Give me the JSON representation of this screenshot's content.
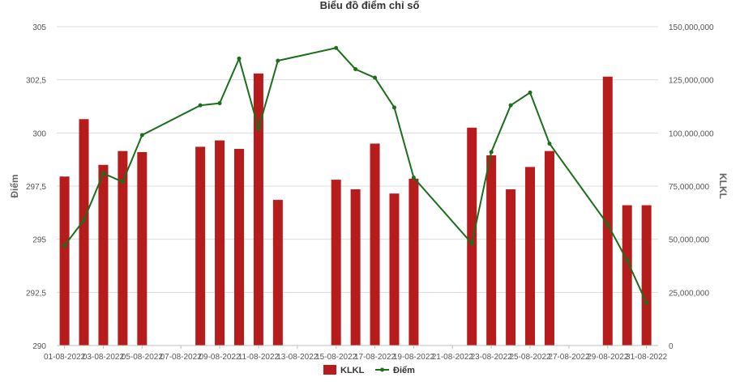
{
  "chart_data": {
    "type": "bar+line",
    "title": "Biểu đồ điểm chỉ số",
    "y_left_label": "Điểm",
    "y_right_label": "KLKL",
    "y_left_ticks": [
      "290",
      "292,5",
      "295",
      "297,5",
      "300",
      "302,5",
      "305"
    ],
    "y_right_ticks": [
      "0",
      "25,000,000",
      "50,000,000",
      "75,000,000",
      "100,000,000",
      "125,000,000",
      "150,000,000"
    ],
    "y_left_range": [
      290,
      305
    ],
    "y_right_range": [
      0,
      150000000
    ],
    "x_tick_labels": [
      "01-08-2022",
      "03-08-2022",
      "05-08-2022",
      "07-08-2022",
      "09-08-2022",
      "11-08-2022",
      "13-08-2022",
      "15-08-2022",
      "17-08-2022",
      "19-08-2022",
      "21-08-2022",
      "23-08-2022",
      "25-08-2022",
      "27-08-2022",
      "29-08-2022",
      "31-08-2022"
    ],
    "grid": true,
    "legend_position": "bottom",
    "series": [
      {
        "name": "KLKL",
        "type": "bar",
        "axis": "right",
        "color": "#b71c1c",
        "points": [
          {
            "date": "01-08-2022",
            "value": 79500000
          },
          {
            "date": "02-08-2022",
            "value": 106500000
          },
          {
            "date": "03-08-2022",
            "value": 85000000
          },
          {
            "date": "04-08-2022",
            "value": 91500000
          },
          {
            "date": "05-08-2022",
            "value": 91000000
          },
          {
            "date": "08-08-2022",
            "value": 93500000
          },
          {
            "date": "09-08-2022",
            "value": 96500000
          },
          {
            "date": "10-08-2022",
            "value": 92500000
          },
          {
            "date": "11-08-2022",
            "value": 128000000
          },
          {
            "date": "12-08-2022",
            "value": 68500000
          },
          {
            "date": "15-08-2022",
            "value": 78000000
          },
          {
            "date": "16-08-2022",
            "value": 73500000
          },
          {
            "date": "17-08-2022",
            "value": 95000000
          },
          {
            "date": "18-08-2022",
            "value": 71500000
          },
          {
            "date": "19-08-2022",
            "value": 78500000
          },
          {
            "date": "22-08-2022",
            "value": 102500000
          },
          {
            "date": "23-08-2022",
            "value": 89500000
          },
          {
            "date": "24-08-2022",
            "value": 73500000
          },
          {
            "date": "25-08-2022",
            "value": 84000000
          },
          {
            "date": "26-08-2022",
            "value": 91500000
          },
          {
            "date": "29-08-2022",
            "value": 126500000
          },
          {
            "date": "30-08-2022",
            "value": 66000000
          },
          {
            "date": "31-08-2022",
            "value": 66000000
          }
        ]
      },
      {
        "name": "Điểm",
        "type": "line",
        "axis": "left",
        "color": "#1b6e1b",
        "points": [
          {
            "date": "01-08-2022",
            "value": 294.7
          },
          {
            "date": "02-08-2022",
            "value": 295.9
          },
          {
            "date": "03-08-2022",
            "value": 298.1
          },
          {
            "date": "04-08-2022",
            "value": 297.7
          },
          {
            "date": "05-08-2022",
            "value": 299.9
          },
          {
            "date": "08-08-2022",
            "value": 301.3
          },
          {
            "date": "09-08-2022",
            "value": 301.4
          },
          {
            "date": "10-08-2022",
            "value": 303.5
          },
          {
            "date": "11-08-2022",
            "value": 300.2
          },
          {
            "date": "12-08-2022",
            "value": 303.4
          },
          {
            "date": "15-08-2022",
            "value": 304.0
          },
          {
            "date": "16-08-2022",
            "value": 303.0
          },
          {
            "date": "17-08-2022",
            "value": 302.6
          },
          {
            "date": "18-08-2022",
            "value": 301.2
          },
          {
            "date": "19-08-2022",
            "value": 297.9
          },
          {
            "date": "22-08-2022",
            "value": 294.8
          },
          {
            "date": "23-08-2022",
            "value": 299.1
          },
          {
            "date": "24-08-2022",
            "value": 301.3
          },
          {
            "date": "25-08-2022",
            "value": 301.9
          },
          {
            "date": "26-08-2022",
            "value": 299.5
          },
          {
            "date": "29-08-2022",
            "value": 295.7
          },
          {
            "date": "30-08-2022",
            "value": 294.0
          },
          {
            "date": "31-08-2022",
            "value": 292.0
          }
        ]
      }
    ]
  }
}
